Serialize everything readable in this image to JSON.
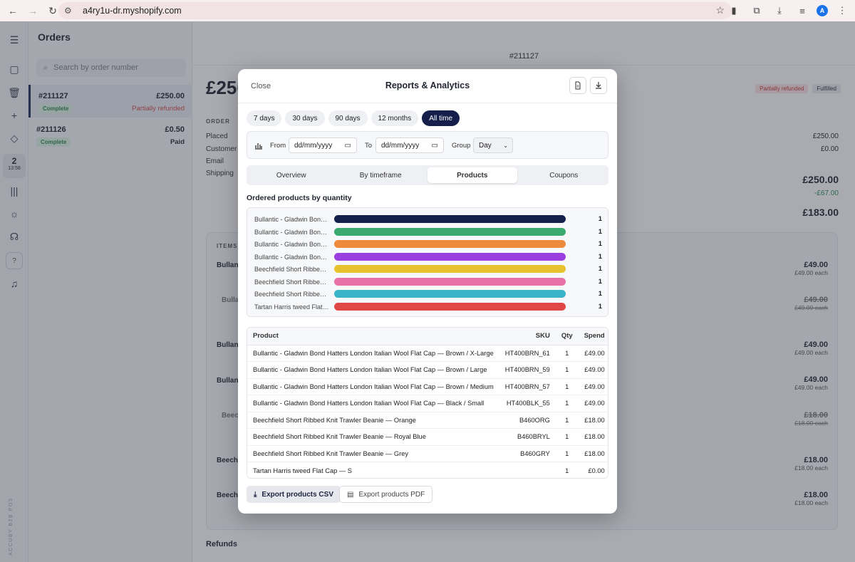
{
  "browser": {
    "url": "a4ry1u-dr.myshopify.com",
    "avatar": "A"
  },
  "rail": {
    "clock_day": "2",
    "clock_time": "13:58",
    "help": "?",
    "vertical": "ACCUBY B2B POS"
  },
  "orders": {
    "title": "Orders",
    "search_placeholder": "Search by order number",
    "rows": [
      {
        "number": "#211127",
        "amount": "£250.00",
        "badge": "Complete",
        "status": "Partially refunded",
        "status_color": "#d24a4a"
      },
      {
        "number": "#211126",
        "amount": "£0.50",
        "badge": "Complete",
        "status": "Paid",
        "status_color": "#222222"
      }
    ]
  },
  "detail": {
    "order_number": "#211127",
    "amount_big": "£250.00",
    "tag_refunded": "Partially refunded",
    "tag_fulfilled": "Fulfilled",
    "section_order": "ORDER",
    "labels": [
      "Placed",
      "Customer",
      "Email",
      "Shipping"
    ],
    "summary": {
      "v1": "£250.00",
      "v2": "£0.00",
      "v3": "£250.00",
      "v4": "-£67.00",
      "v5": "£183.00"
    },
    "items_label": "ITEMS",
    "items": [
      {
        "name": "Bullan",
        "price": "£49.00",
        "each": "£49.00 each",
        "struck": false
      },
      {
        "name": "Bullan",
        "price": "£49.00",
        "each": "£49.00 each",
        "struck": true
      },
      {
        "name": "Bullan",
        "price": "£49.00",
        "each": "£49.00 each",
        "struck": false
      },
      {
        "name": "Bullan",
        "price": "£49.00",
        "each": "£49.00 each",
        "struck": false
      },
      {
        "name": "Beech",
        "price": "£18.00",
        "each": "£18.00 each",
        "struck": true
      },
      {
        "name": "Beech",
        "price": "£18.00",
        "each": "£18.00 each",
        "struck": false
      },
      {
        "name": "Beech",
        "price": "£18.00",
        "each": "£18.00 each",
        "struck": false
      }
    ],
    "refunds_label": "Refunds"
  },
  "modal": {
    "close": "Close",
    "title": "Reports & Analytics",
    "ranges": [
      "7 days",
      "30 days",
      "90 days",
      "12 months",
      "All time"
    ],
    "active_range": "All time",
    "from_label": "From",
    "from_value": "dd/mm/yyyy",
    "to_label": "To",
    "to_value": "dd/mm/yyyy",
    "group_label": "Group",
    "group_value": "Day",
    "tabs": [
      "Overview",
      "By timeframe",
      "Products",
      "Coupons"
    ],
    "active_tab": "Products",
    "section_title": "Ordered products by quantity",
    "table": {
      "headers": {
        "product": "Product",
        "sku": "SKU",
        "qty": "Qty",
        "spend": "Spend"
      },
      "rows": [
        {
          "product": "Bullantic - Gladwin Bond Hatters London Italian Wool Flat Cap — Brown / X-Large",
          "sku": "HT400BRN_61",
          "qty": "1",
          "spend": "£49.00"
        },
        {
          "product": "Bullantic - Gladwin Bond Hatters London Italian Wool Flat Cap — Brown / Large",
          "sku": "HT400BRN_59",
          "qty": "1",
          "spend": "£49.00"
        },
        {
          "product": "Bullantic - Gladwin Bond Hatters London Italian Wool Flat Cap — Brown / Medium",
          "sku": "HT400BRN_57",
          "qty": "1",
          "spend": "£49.00"
        },
        {
          "product": "Bullantic - Gladwin Bond Hatters London Italian Wool Flat Cap — Black / Small",
          "sku": "HT400BLK_55",
          "qty": "1",
          "spend": "£49.00"
        },
        {
          "product": "Beechfield Short Ribbed Knit Trawler Beanie — Orange",
          "sku": "B460ORG",
          "qty": "1",
          "spend": "£18.00"
        },
        {
          "product": "Beechfield Short Ribbed Knit Trawler Beanie — Royal Blue",
          "sku": "B460BRYL",
          "qty": "1",
          "spend": "£18.00"
        },
        {
          "product": "Beechfield Short Ribbed Knit Trawler Beanie — Grey",
          "sku": "B460GRY",
          "qty": "1",
          "spend": "£18.00"
        },
        {
          "product": "Tartan Harris tweed Flat Cap — S",
          "sku": "",
          "qty": "1",
          "spend": "£0.00"
        }
      ]
    },
    "export_csv": "Export products CSV",
    "export_pdf": "Export products PDF"
  },
  "chart_data": {
    "type": "bar",
    "orientation": "horizontal",
    "categories": [
      "Bullantic - Gladwin Bon…",
      "Bullantic - Gladwin Bon…",
      "Bullantic - Gladwin Bon…",
      "Bullantic - Gladwin Bon…",
      "Beechfield Short Ribbe…",
      "Beechfield Short Ribbe…",
      "Beechfield Short Ribbe…",
      "Tartan Harris tweed Flat…"
    ],
    "values": [
      1,
      1,
      1,
      1,
      1,
      1,
      1,
      1
    ],
    "colors": [
      "#14204a",
      "#3aaa6e",
      "#ee8a3c",
      "#9b3fe0",
      "#e8c12f",
      "#e872a8",
      "#3ab4c8",
      "#e04848"
    ],
    "xlim": [
      0,
      1
    ]
  }
}
